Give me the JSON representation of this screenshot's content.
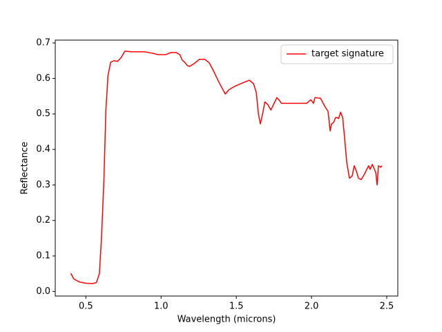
{
  "chart_data": {
    "type": "line",
    "x_label": "Wavelength (microns)",
    "y_label": "Reflectance",
    "x": [
      0.4,
      0.42,
      0.455,
      0.5,
      0.545,
      0.57,
      0.59,
      0.605,
      0.62,
      0.633,
      0.647,
      0.665,
      0.688,
      0.71,
      0.733,
      0.76,
      0.8,
      0.89,
      0.945,
      0.98,
      1.03,
      1.065,
      1.1,
      1.125,
      1.14,
      1.16,
      1.175,
      1.19,
      1.22,
      1.255,
      1.29,
      1.32,
      1.35,
      1.385,
      1.427,
      1.45,
      1.47,
      1.495,
      1.54,
      1.587,
      1.615,
      1.633,
      1.647,
      1.66,
      1.675,
      1.69,
      1.71,
      1.73,
      1.748,
      1.77,
      1.785,
      1.8,
      1.853,
      1.968,
      1.995,
      2.013,
      2.023,
      2.06,
      2.09,
      2.11,
      2.124,
      2.133,
      2.147,
      2.16,
      2.17,
      2.18,
      2.193,
      2.207,
      2.22,
      2.234,
      2.252,
      2.27,
      2.284,
      2.298,
      2.312,
      2.33,
      2.35,
      2.367,
      2.38,
      2.39,
      2.404,
      2.418,
      2.427,
      2.436,
      2.445,
      2.46,
      2.468
    ],
    "series": [
      {
        "name": "target signature",
        "color": "#ff0000",
        "values": [
          0.051,
          0.035,
          0.027,
          0.023,
          0.022,
          0.025,
          0.05,
          0.16,
          0.315,
          0.51,
          0.608,
          0.646,
          0.65,
          0.648,
          0.658,
          0.677,
          0.675,
          0.675,
          0.671,
          0.667,
          0.667,
          0.673,
          0.673,
          0.667,
          0.652,
          0.644,
          0.636,
          0.634,
          0.642,
          0.654,
          0.654,
          0.644,
          0.62,
          0.589,
          0.556,
          0.568,
          0.573,
          0.579,
          0.587,
          0.595,
          0.585,
          0.56,
          0.5,
          0.472,
          0.501,
          0.534,
          0.526,
          0.511,
          0.527,
          0.546,
          0.539,
          0.53,
          0.53,
          0.53,
          0.54,
          0.53,
          0.546,
          0.544,
          0.52,
          0.507,
          0.452,
          0.472,
          0.476,
          0.49,
          0.49,
          0.487,
          0.505,
          0.49,
          0.432,
          0.364,
          0.319,
          0.325,
          0.354,
          0.339,
          0.319,
          0.315,
          0.329,
          0.344,
          0.354,
          0.344,
          0.358,
          0.344,
          0.335,
          0.3,
          0.354,
          0.35,
          0.354
        ]
      }
    ],
    "xlim": [
      0.2965,
      2.5735
    ],
    "xticks": [
      0.5,
      {
        "value": 1,
        "label": "1.0"
      },
      1.5,
      {
        "value": 2,
        "label": "2.0"
      },
      2.5
    ],
    "ylim": [
      -0.013,
      0.708
    ],
    "yticks": [
      {
        "value": 0,
        "label": "0.0"
      },
      0.1,
      0.2,
      0.3,
      0.4,
      0.5,
      0.6,
      0.7
    ],
    "legend": "upper right"
  }
}
